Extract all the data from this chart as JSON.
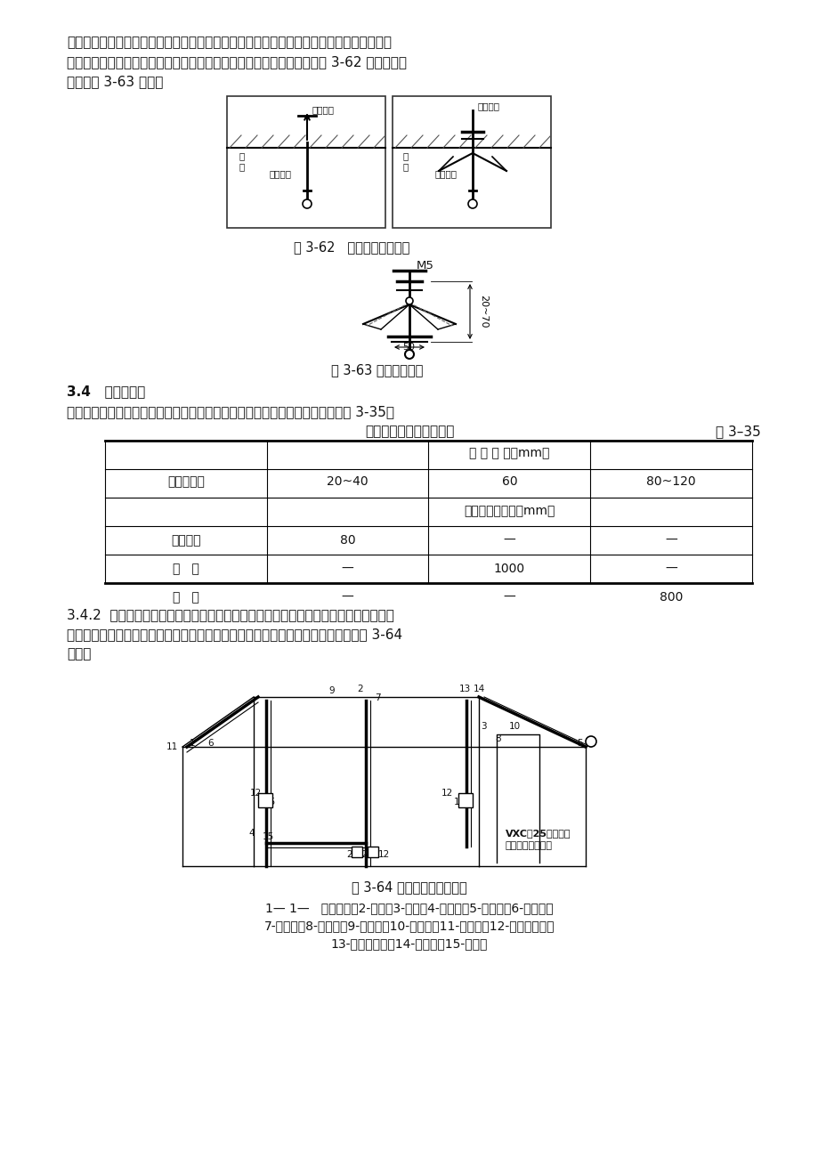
{
  "page_bg": "#ffffff",
  "font_color": "#111111",
  "paragraph1": "紧合拢插入孔中，待合拢伞叶自行张开后，再用螺母紧固即可，露出线槽内的部分应加套塑",
  "paragraph2": "料管。固定线槽时，应先固定两端再固定中间。伞型螺栓安装做法，见图 3-62 和伞型螺栓",
  "paragraph3": "构造见图 3-63 所示。",
  "fig62_caption": "图 3-62   伞型螺栓安装做法",
  "fig63_caption": "图 3-63 伞型螺栓构造",
  "section34_title": "3.4   线槽连接：",
  "section34_para1": "线槽及附件连接处应严密平整，无孔不入缝隙，紧贴建筑物固定点最大间距见表 3-35。",
  "table_title": "槽体固定点最大间距尺寸",
  "table_ref": "表 3–35",
  "table_col_header": "槽 板 宽 度（mm）",
  "table_fixed_label": "固定点型式",
  "table_col2": "20~40",
  "table_col3": "60",
  "table_col4": "80~120",
  "table_subhdr": "固定点最大间距（mm）",
  "table_rows": [
    [
      "中心单列",
      "80",
      "—",
      "—"
    ],
    [
      "双   列",
      "—",
      "1000",
      "—"
    ],
    [
      "双   列",
      "—",
      "—",
      "800"
    ]
  ],
  "sec342_l1": "3.4.2  线槽分支接头，线槽附件如直能，三能转角，接头，插口，盒，箱应采用相同材",
  "sec342_l2": "质的定型产品。槽底、槽盖与各种附件相对接时，接缝处应严实平整，固定牢固见图 3-64",
  "sec342_l3": "所示。",
  "fig64_caption": "图 3-64 塑料线槽安装示意图",
  "fig64_leg1": "1— 1—   塑料线槽；2-阳角；3-阴角；4-直转有；5-平转角；6-平三通；",
  "fig64_leg2": "7-顶三通；8-连接头；9-右三角；10-左三通；11-终端头；12-接线盒插口；",
  "fig64_leg3": "13-灯头盒插口；14-灯头盒；15-接线盒"
}
